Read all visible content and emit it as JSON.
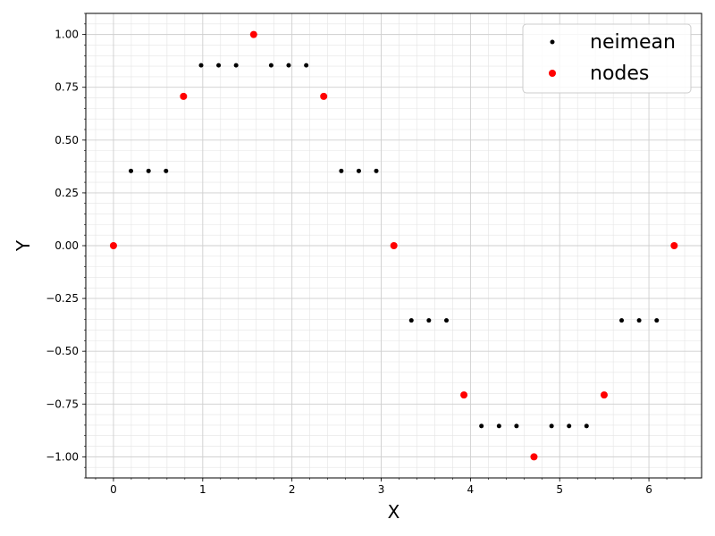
{
  "chart_data": {
    "type": "scatter",
    "title": "",
    "xlabel": "X",
    "ylabel": "Y",
    "xlim": [
      -0.31,
      6.59
    ],
    "ylim": [
      -1.1,
      1.1
    ],
    "grid": true,
    "grid_minor": true,
    "legend_position": "top-right",
    "x_ticks": [
      0,
      1,
      2,
      3,
      4,
      5,
      6
    ],
    "x_tick_labels": [
      "0",
      "1",
      "2",
      "3",
      "4",
      "5",
      "6"
    ],
    "y_ticks": [
      1.0,
      0.75,
      0.5,
      0.25,
      0.0,
      -0.25,
      -0.5,
      -0.75,
      -1.0
    ],
    "y_tick_labels": [
      "1.00",
      "0.75",
      "0.50",
      "0.25",
      "0.00",
      "−0.25",
      "−0.50",
      "−0.75",
      "−1.00"
    ],
    "series": [
      {
        "name": "neimean",
        "color": "#000000",
        "marker_radius": 2.5,
        "x": [
          0.196,
          0.393,
          0.589,
          0.982,
          1.178,
          1.374,
          1.767,
          1.963,
          2.16,
          2.553,
          2.749,
          2.945,
          3.338,
          3.534,
          3.731,
          4.123,
          4.32,
          4.516,
          4.909,
          5.105,
          5.301,
          5.694,
          5.89,
          6.087
        ],
        "y": [
          0.354,
          0.354,
          0.354,
          0.854,
          0.854,
          0.854,
          0.854,
          0.854,
          0.854,
          0.354,
          0.354,
          0.354,
          -0.354,
          -0.354,
          -0.354,
          -0.854,
          -0.854,
          -0.854,
          -0.854,
          -0.854,
          -0.854,
          -0.354,
          -0.354,
          -0.354
        ]
      },
      {
        "name": "nodes",
        "color": "#ff0000",
        "marker_radius": 4,
        "x": [
          0,
          0.785,
          1.571,
          2.356,
          3.142,
          3.927,
          4.712,
          5.498,
          6.283
        ],
        "y": [
          0,
          0.707,
          1.0,
          0.707,
          0,
          -0.707,
          -1.0,
          -0.707,
          0
        ]
      }
    ]
  }
}
